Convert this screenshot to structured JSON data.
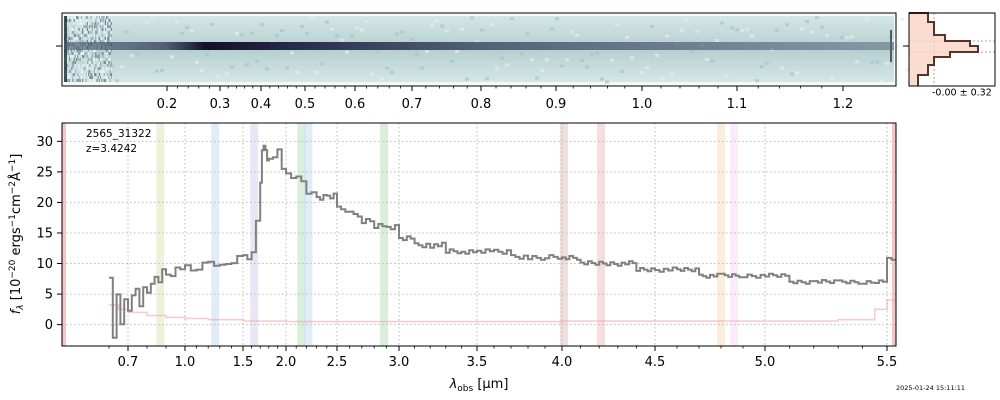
{
  "chart_data": [
    {
      "type": "heatmap",
      "panel": "2d-spectrum",
      "description_ticks_top": [
        "0.2",
        "0.3",
        "0.4",
        "0.5",
        "0.6",
        "0.7",
        "0.8",
        "0.9",
        "1.0",
        "1.1",
        "1.2"
      ],
      "tick_values": [
        0.2,
        0.3,
        0.4,
        0.5,
        0.6,
        0.7,
        0.8,
        0.9,
        1.0,
        1.1,
        1.2
      ],
      "colors": {
        "background": "#c8dcdc",
        "trace": "#1e1e3c"
      }
    },
    {
      "type": "line",
      "panel": "profile",
      "annotation": "-0.00 ± 0.32",
      "colors": {
        "line": "#5a3228",
        "fill": "#f4c8b8"
      }
    },
    {
      "type": "line",
      "panel": "1d-spectrum",
      "annotation_id": "2565_31322",
      "annotation_z": "z=3.4242",
      "xlabel_main": "λ",
      "xlabel_sub": "obs",
      "xlabel_unit": " [μm]",
      "ylabel_main": "f",
      "ylabel_sub": "λ",
      "ylabel_unit": " [10",
      "ylabel_exp1": "−20",
      "ylabel_mid": " ergs",
      "ylabel_exp2": "−1",
      "ylabel_mid2": "cm",
      "ylabel_exp3": "−2",
      "ylabel_mid3": "Å",
      "ylabel_exp4": "−1",
      "ylabel_end": "]",
      "ylim": [
        -3.5,
        33
      ],
      "yticks": [
        "0",
        "5",
        "10",
        "15",
        "20",
        "25",
        "30"
      ],
      "ytick_values": [
        0,
        5,
        10,
        15,
        20,
        25,
        30
      ],
      "xticks": [
        "0.7",
        "1.0",
        "1.5",
        "2.0",
        "2.5",
        "3.0",
        "3.5",
        "4.0",
        "4.5",
        "5.0",
        "5.5"
      ],
      "xtick_values": [
        0.7,
        1.0,
        1.5,
        2.0,
        2.5,
        3.0,
        3.5,
        4.0,
        4.5,
        5.0,
        5.5
      ],
      "grid": true,
      "series": [
        {
          "role": "flux",
          "color": "#808080",
          "x": [
            0.6,
            0.62,
            0.64,
            0.66,
            0.68,
            0.7,
            0.72,
            0.74,
            0.76,
            0.78,
            0.8,
            0.82,
            0.84,
            0.86,
            0.88,
            0.9,
            0.95,
            1.0,
            1.05,
            1.1,
            1.15,
            1.2,
            1.25,
            1.3,
            1.35,
            1.4,
            1.45,
            1.5,
            1.55,
            1.6,
            1.65,
            1.7,
            1.72,
            1.74,
            1.76,
            1.78,
            1.8,
            1.85,
            1.9,
            1.95,
            2.0,
            2.05,
            2.1,
            2.15,
            2.2,
            2.25,
            2.3,
            2.4,
            2.5,
            2.6,
            2.7,
            2.8,
            2.9,
            3.0,
            3.1,
            3.2,
            3.3,
            3.4,
            3.5,
            3.6,
            3.7,
            3.8,
            3.9,
            4.0,
            4.1,
            4.2,
            4.3,
            4.4,
            4.5,
            4.6,
            4.7,
            4.8,
            4.9,
            5.0,
            5.1,
            5.2,
            5.3,
            5.4,
            5.45,
            5.5
          ],
          "y": [
            8,
            -2,
            5,
            0,
            4,
            2,
            5,
            6,
            3,
            6,
            5,
            7,
            8,
            7,
            9,
            8,
            9,
            10,
            9,
            9,
            10,
            10,
            10,
            10,
            10,
            10,
            11,
            11,
            11,
            12,
            17,
            23,
            28,
            30,
            29,
            27,
            27,
            27,
            28,
            26,
            25,
            24,
            24,
            23,
            22,
            22,
            21,
            21,
            19,
            18,
            17,
            16,
            16,
            14,
            13,
            13,
            12,
            12,
            12,
            12,
            11,
            11,
            11,
            11,
            10,
            10,
            10,
            9,
            9,
            9,
            8,
            8,
            8,
            8,
            7,
            7,
            7,
            7,
            7,
            11
          ]
        },
        {
          "role": "uncertainty",
          "color": "#f0a0a0",
          "x": [
            0.6,
            0.65,
            0.7,
            0.8,
            0.9,
            1.0,
            1.2,
            1.5,
            2.0,
            2.5,
            3.0,
            3.5,
            4.0,
            4.5,
            5.0,
            5.3,
            5.45,
            5.5
          ],
          "y": [
            3.2,
            2.5,
            2.0,
            1.5,
            1.2,
            1.0,
            0.8,
            0.6,
            0.5,
            0.5,
            0.5,
            0.5,
            0.6,
            0.6,
            0.6,
            0.8,
            2.5,
            4.0
          ]
        }
      ],
      "line_bands": [
        {
          "x": 0.87,
          "color": "#c8dc96"
        },
        {
          "x": 1.26,
          "color": "#aac8f0"
        },
        {
          "x": 1.63,
          "color": "#c8b4e6"
        },
        {
          "x": 2.15,
          "color": "#96d296"
        },
        {
          "x": 2.22,
          "color": "#aac8f0"
        },
        {
          "x": 2.88,
          "color": "#96d296"
        },
        {
          "x": 4.01,
          "color": "#d2a0a0"
        },
        {
          "x": 4.21,
          "color": "#e6a0a0"
        },
        {
          "x": 4.8,
          "color": "#f5c896"
        },
        {
          "x": 4.86,
          "color": "#f0c8f0"
        }
      ]
    }
  ],
  "timestamp": "2025-01-24 15:11:11"
}
